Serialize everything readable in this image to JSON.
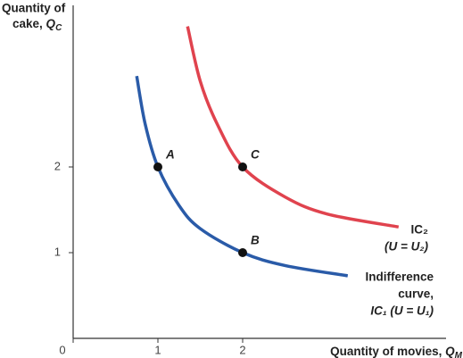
{
  "chart_data": {
    "type": "line",
    "ylabel": {
      "lines": [
        "Quantity of",
        "cake, "
      ],
      "var": "Q",
      "sub": "C"
    },
    "xlabel": {
      "text": "Quantity of movies, ",
      "var": "Q",
      "sub": "M"
    },
    "xlim": [
      0,
      4.4
    ],
    "ylim": [
      0,
      3.9
    ],
    "xticks": [
      0,
      1,
      2
    ],
    "yticks": [
      1,
      2
    ],
    "series": [
      {
        "name": [
          "Indifference",
          "curve,",
          "IC₁ (U = U₁)"
        ],
        "color": "#2a5ba8",
        "x": [
          0.75,
          0.85,
          1,
          1.25,
          1.5,
          2,
          2.5,
          3.24
        ],
        "values": [
          3.06,
          2.5,
          2,
          1.55,
          1.28,
          1,
          0.85,
          0.73
        ]
      },
      {
        "name": [
          "IC₂",
          "(U = U₂)"
        ],
        "color": "#e0434e",
        "x": [
          1.35,
          1.5,
          1.7,
          2,
          2.5,
          3,
          3.84
        ],
        "values": [
          3.64,
          3.0,
          2.5,
          2,
          1.65,
          1.45,
          1.3
        ]
      }
    ],
    "points": [
      {
        "label": "A",
        "x": 1,
        "y": 2
      },
      {
        "label": "B",
        "x": 2,
        "y": 1
      },
      {
        "label": "C",
        "x": 2,
        "y": 2
      }
    ]
  }
}
